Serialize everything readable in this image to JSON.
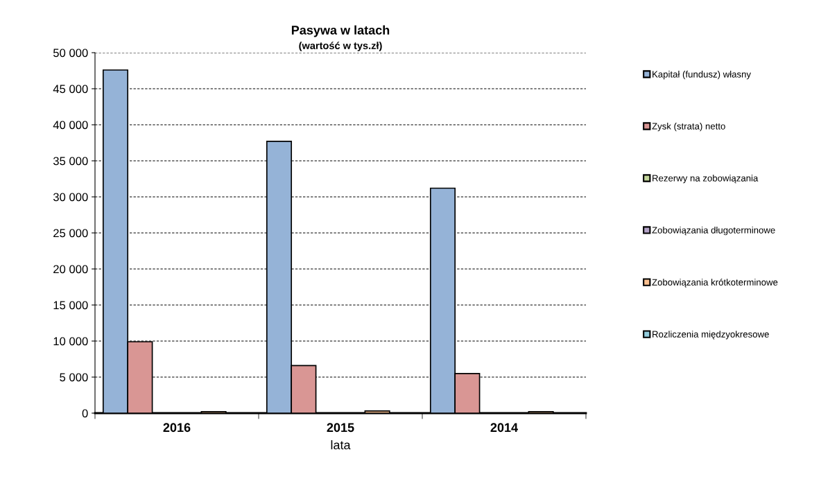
{
  "chart_data": {
    "type": "bar",
    "title": "Pasywa w latach",
    "subtitle": "(wartość w tys.zł)",
    "xlabel": "lata",
    "categories": [
      "2016",
      "2015",
      "2014"
    ],
    "series": [
      {
        "name": "Kapitał (fundusz) własny",
        "color": "#95b3d7",
        "values": [
          47600,
          37700,
          31200
        ]
      },
      {
        "name": "Zysk (strata) netto",
        "color": "#d99694",
        "values": [
          9900,
          6600,
          5500
        ]
      },
      {
        "name": "Rezerwy na zobowiązania",
        "color": "#c3d69b",
        "values": [
          0,
          0,
          0
        ]
      },
      {
        "name": "Zobowiązania długoterminowe",
        "color": "#b3a2c7",
        "values": [
          0,
          0,
          0
        ]
      },
      {
        "name": "Zobowiązania krótkoterminowe",
        "color": "#fac090",
        "values": [
          200,
          300,
          200
        ]
      },
      {
        "name": "Rozliczenia międzyokresowe",
        "color": "#93cddd",
        "values": [
          0,
          0,
          0
        ]
      }
    ],
    "ylim": [
      0,
      50000
    ],
    "yticks": [
      {
        "value": 0,
        "label": "0"
      },
      {
        "value": 5000,
        "label": "5 000"
      },
      {
        "value": 10000,
        "label": "10 000"
      },
      {
        "value": 15000,
        "label": "15 000"
      },
      {
        "value": 20000,
        "label": "20 000"
      },
      {
        "value": 25000,
        "label": "25 000"
      },
      {
        "value": 30000,
        "label": "30 000"
      },
      {
        "value": 35000,
        "label": "35 000"
      },
      {
        "value": 40000,
        "label": "40 000"
      },
      {
        "value": 45000,
        "label": "45 000"
      },
      {
        "value": 50000,
        "label": "50 000"
      }
    ],
    "grid": "y",
    "legend": "right"
  }
}
